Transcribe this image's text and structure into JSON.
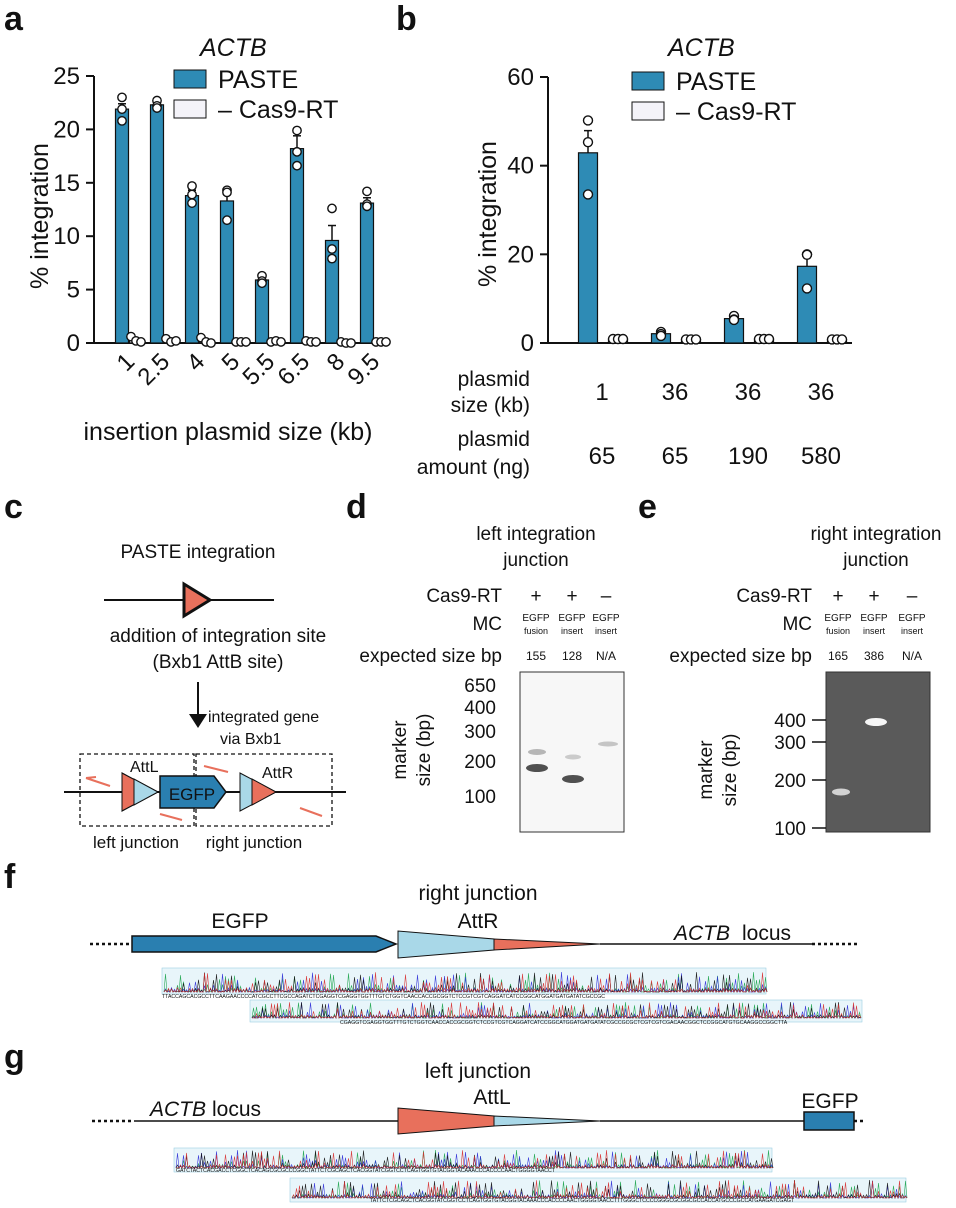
{
  "panels": {
    "a": "a",
    "b": "b",
    "c": "c",
    "d": "d",
    "e": "e",
    "f": "f",
    "g": "g"
  },
  "colors": {
    "paste": "#2E8BB5",
    "control": "#F4F3F9",
    "red": "#E8705C",
    "light_blue": "#A9D8E8",
    "dark_blue": "#2A7FB0"
  },
  "chart_data": [
    {
      "id": "a",
      "type": "bar",
      "title": "ACTB",
      "ylabel": "% integration",
      "xlabel": "insertion plasmid size (kb)",
      "ylim": [
        0,
        25
      ],
      "yticks": [
        0,
        5,
        10,
        15,
        20,
        25
      ],
      "categories": [
        "1",
        "2.5",
        "4",
        "5",
        "5.5",
        "6.5",
        "8",
        "9.5"
      ],
      "series": [
        {
          "name": "PASTE",
          "values": [
            21.9,
            22.3,
            13.8,
            13.3,
            5.9,
            18.2,
            9.6,
            13.1
          ],
          "errors": [
            0.5,
            0.2,
            0.5,
            0.9,
            0.3,
            1.2,
            1.4,
            0.5
          ],
          "points": [
            [
              23.0,
              21.9,
              20.8
            ],
            [
              22.7,
              22.2,
              22.0
            ],
            [
              14.7,
              13.9,
              13.1
            ],
            [
              14.3,
              11.5,
              14.1
            ],
            [
              6.3,
              5.8,
              5.6
            ],
            [
              19.9,
              17.9,
              16.6
            ],
            [
              12.6,
              8.8,
              7.9
            ],
            [
              14.2,
              13.0,
              12.8
            ]
          ]
        },
        {
          "name": "– Cas9-RT",
          "values": [
            0.3,
            0.2,
            0.2,
            0.1,
            0.1,
            0.15,
            0.05,
            0.1
          ],
          "errors": [
            0,
            0,
            0,
            0,
            0,
            0,
            0,
            0
          ],
          "points": [
            [
              0.6,
              0.2,
              0.1
            ],
            [
              0.4,
              0.1,
              0.2
            ],
            [
              0.5,
              0.1,
              0.0
            ],
            [
              0.1,
              0.1,
              0.1
            ],
            [
              0.1,
              0.2,
              0.1
            ],
            [
              0.2,
              0.1,
              0.1
            ],
            [
              0.1,
              0.0,
              0.0
            ],
            [
              0.1,
              0.1,
              0.1
            ]
          ]
        }
      ]
    },
    {
      "id": "b",
      "type": "bar",
      "title": "ACTB",
      "ylabel": "% integration",
      "ylim": [
        0,
        60
      ],
      "yticks": [
        0,
        20,
        40,
        60
      ],
      "row1_label": [
        "plasmid",
        "size (kb)"
      ],
      "row2_label": [
        "plasmid",
        "amount (ng)"
      ],
      "plasmid_size_kb": [
        "1",
        "36",
        "36",
        "36"
      ],
      "plasmid_amount_ng": [
        "65",
        "65",
        "190",
        "580"
      ],
      "series": [
        {
          "name": "PASTE",
          "values": [
            42.9,
            2.1,
            5.5,
            17.3
          ],
          "errors": [
            5.0,
            0.6,
            0.4,
            3.0
          ],
          "points": [
            [
              50.2,
              45.3,
              33.5
            ],
            [
              2.5,
              2.0,
              1.6
            ],
            [
              6.1,
              5.3,
              5.2
            ],
            [
              20.0,
              19.9,
              12.3
            ]
          ]
        },
        {
          "name": "– Cas9-RT",
          "values": [
            0.9,
            0.8,
            0.9,
            0.8
          ],
          "errors": [
            0,
            0,
            0,
            0
          ],
          "points": [
            [
              0.9,
              0.9,
              0.9
            ],
            [
              0.8,
              0.8,
              0.8
            ],
            [
              0.9,
              0.9,
              0.9
            ],
            [
              0.8,
              0.8,
              0.8
            ]
          ]
        }
      ]
    }
  ],
  "legend": {
    "paste": "PASTE",
    "control": "– Cas9-RT"
  },
  "panel_c": {
    "title": "PASTE integration",
    "addition_line1": "addition of integration site",
    "addition_line2": "(Bxb1 AttB site)",
    "integrated_line1": "integrated gene",
    "integrated_line2": "via Bxb1",
    "attl": "AttL",
    "attr": "AttR",
    "egfp": "EGFP",
    "left_junction": "left junction",
    "right_junction": "right junction"
  },
  "panel_d": {
    "title_line1": "left integration",
    "title_line2": "junction",
    "row_cas9_label": "Cas9-RT",
    "cas9": [
      "+",
      "+",
      "–"
    ],
    "row_mc_label": "MC",
    "mc_top": [
      "EGFP",
      "EGFP",
      "EGFP"
    ],
    "mc_bottom": [
      "fusion",
      "insert",
      "insert"
    ],
    "row_size_label": "expected size bp",
    "sizes": [
      "155",
      "128",
      "N/A"
    ],
    "marker_label_line1": "marker",
    "marker_label_line2": "size (bp)",
    "markers": [
      "650",
      "400",
      "300",
      "200",
      "100"
    ]
  },
  "panel_e": {
    "title_line1": "right integration",
    "title_line2": "junction",
    "row_cas9_label": "Cas9-RT",
    "cas9": [
      "+",
      "+",
      "–"
    ],
    "row_mc_label": "MC",
    "mc_top": [
      "EGFP",
      "EGFP",
      "EGFP"
    ],
    "mc_bottom": [
      "fusion",
      "insert",
      "insert"
    ],
    "row_size_label": "expected size bp",
    "sizes": [
      "165",
      "386",
      "N/A"
    ],
    "marker_label_line1": "marker",
    "marker_label_line2": "size (bp)",
    "markers": [
      "400",
      "300",
      "200",
      "100"
    ]
  },
  "panel_f": {
    "egfp": "EGFP",
    "junction_line1": "right junction",
    "junction_line2": "AttR",
    "locus_gene": "ACTB",
    "locus_word": "locus",
    "seq1": "TTACCAGCACGCCTTCAAGAACCCCATCGCCTTCGCCAGATCTCGAGGTCGAGGTGGTTTGTCTGGTCAACCACCGCGGTCTCCGTCGTCAGGATCATCCGGCATGGATGATGATATCGCCGC",
    "seq2": "CGAGGTCGAGGTGGTTTGTCTGGTCAACCACCGCGGTCTCCGTCGTCAGGATCATCCGGCATGGATGATGATATCGCCGCGCTCGTCGTCGACAACGGCTCCGGCATGTGCAAGGCCGGCTTA"
  },
  "panel_g": {
    "locus_gene": "ACTB",
    "locus_word": "locus",
    "junction_line1": "left junction",
    "junction_line2": "AttL",
    "egfp": "EGFP",
    "seq1": "GATCTACTCACGACCTCGGCTCACAGCGCGCCCGGCTATTCTCGCAGCTCACGGTATCGGTCCTCAGTGGTGTACGGTACAAACCCACCCCAACTGGGGTAACCT",
    "seq2": "TATTCTCGCAGCTCACGGTATCGGTCCTCAGTGGTGTACGGTACAAACCCACCCCAACTGGGGTAACCTTTGGGCTCCCCGGGCGCGGCGCCACCATGCCCGCCATGAAGATCGAGT"
  }
}
